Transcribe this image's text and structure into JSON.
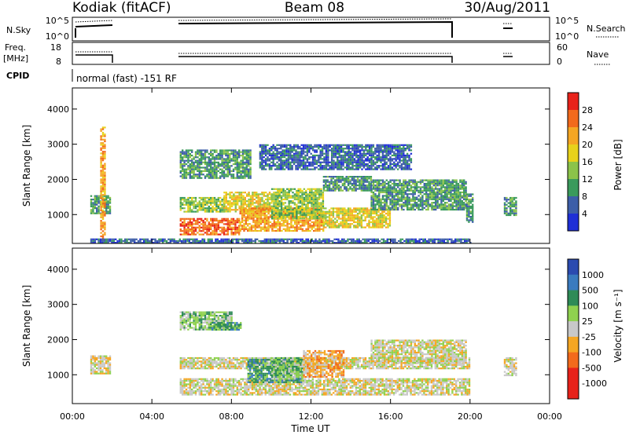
{
  "header": {
    "station": "Kodiak (fitACF)",
    "beam": "Beam 08",
    "date": "30/Aug/2011"
  },
  "summary_panels": {
    "nsky_label": "N.Sky",
    "nsky_ticks": [
      "10^5",
      "10^0"
    ],
    "nsearch_label": "N.Search",
    "nsearch_ticks": [
      "10^5",
      "10^0"
    ],
    "freq_label": "Freq.",
    "freq_unit": "[MHz]",
    "freq_ticks": [
      "18",
      "8"
    ],
    "nave_label": "Nave",
    "nave_ticks": [
      "60",
      "0"
    ],
    "cpid_label": "CPID",
    "cpid_text": "normal (fast) -151 RF"
  },
  "chart_data": [
    {
      "type": "heatmap",
      "name": "Power panel",
      "ylabel": "Slant Range [km]",
      "xlabel": "",
      "y_ticks": [
        1000,
        2000,
        3000,
        4000
      ],
      "ylim": [
        180,
        4600
      ],
      "x_tick_labels": [
        "00:00",
        "04:00",
        "08:00",
        "12:00",
        "16:00",
        "20:00",
        "00:00"
      ],
      "xlim_hours": [
        0,
        24
      ],
      "colorbar": {
        "label": "Power [dB]",
        "ticks": [
          "28",
          "24",
          "20",
          "16",
          "12",
          "8",
          "4"
        ],
        "colors": [
          "#e8221a",
          "#f26a1c",
          "#f5a623",
          "#e8d21b",
          "#8bc34a",
          "#3a9a5c",
          "#3d5ea8",
          "#1f2fd6"
        ]
      },
      "echo_bands": [
        {
          "t0": 0.9,
          "t1": 1.9,
          "r0": 1050,
          "r1": 1550,
          "level": 5
        },
        {
          "t0": 1.4,
          "t1": 1.6,
          "r0": 300,
          "r1": 3500,
          "level": 2
        },
        {
          "t0": 5.4,
          "t1": 7.6,
          "r0": 1100,
          "r1": 1500,
          "level": 4
        },
        {
          "t0": 5.4,
          "t1": 8.4,
          "r0": 450,
          "r1": 900,
          "level": 1
        },
        {
          "t0": 5.4,
          "t1": 9.0,
          "r0": 2050,
          "r1": 2850,
          "level": 5
        },
        {
          "t0": 7.6,
          "t1": 10.0,
          "r0": 1100,
          "r1": 1650,
          "level": 3
        },
        {
          "t0": 8.4,
          "t1": 12.6,
          "r0": 550,
          "r1": 1200,
          "level": 2
        },
        {
          "t0": 10.0,
          "t1": 12.6,
          "r0": 900,
          "r1": 1750,
          "level": 4
        },
        {
          "t0": 12.6,
          "t1": 16.0,
          "r0": 650,
          "r1": 1200,
          "level": 3
        },
        {
          "t0": 12.6,
          "t1": 15.0,
          "r0": 1700,
          "r1": 2100,
          "level": 5
        },
        {
          "t0": 15.0,
          "t1": 19.8,
          "r0": 1150,
          "r1": 2000,
          "level": 5
        },
        {
          "t0": 19.8,
          "t1": 20.1,
          "r0": 800,
          "r1": 1600,
          "level": 5
        },
        {
          "t0": 21.7,
          "t1": 22.3,
          "r0": 1000,
          "r1": 1500,
          "level": 5
        },
        {
          "t0": 9.4,
          "t1": 17.0,
          "r0": 2300,
          "r1": 3000,
          "level": 6
        },
        {
          "t0": 0.9,
          "t1": 20.0,
          "r0": 180,
          "r1": 320,
          "level": 6
        }
      ]
    },
    {
      "type": "heatmap",
      "name": "Velocity panel",
      "ylabel": "Slant Range [km]",
      "xlabel": "Time UT",
      "y_ticks": [
        1000,
        2000,
        3000,
        4000
      ],
      "ylim": [
        180,
        4600
      ],
      "x_tick_labels": [
        "00:00",
        "04:00",
        "08:00",
        "12:00",
        "16:00",
        "20:00",
        "00:00"
      ],
      "xlim_hours": [
        0,
        24
      ],
      "colorbar": {
        "label": "Velocity [m s⁻¹]",
        "ticks": [
          "1000",
          "500",
          "100",
          "25",
          "-25",
          "-100",
          "-500",
          "-1000"
        ],
        "colors": [
          "#2b4bb0",
          "#3a7bbf",
          "#2e8b57",
          "#8fd14f",
          "#c8c8c8",
          "#f5a623",
          "#f26a1c",
          "#e8221a",
          "#e8221a"
        ]
      },
      "echo_bands": [
        {
          "t0": 0.9,
          "t1": 1.9,
          "r0": 1050,
          "r1": 1550,
          "level": 4
        },
        {
          "t0": 5.4,
          "t1": 20.0,
          "r0": 450,
          "r1": 900,
          "level": 4
        },
        {
          "t0": 5.4,
          "t1": 20.0,
          "r0": 1200,
          "r1": 1500,
          "level": 4
        },
        {
          "t0": 5.4,
          "t1": 8.0,
          "r0": 2300,
          "r1": 2800,
          "level": 3
        },
        {
          "t0": 8.8,
          "t1": 11.5,
          "r0": 800,
          "r1": 1450,
          "level": 2
        },
        {
          "t0": 10.0,
          "t1": 11.6,
          "r0": 900,
          "r1": 1500,
          "level": 3
        },
        {
          "t0": 11.6,
          "t1": 13.6,
          "r0": 950,
          "r1": 1700,
          "level": 5
        },
        {
          "t0": 15.0,
          "t1": 19.8,
          "r0": 1350,
          "r1": 2000,
          "level": 4
        },
        {
          "t0": 21.7,
          "t1": 22.3,
          "r0": 1000,
          "r1": 1500,
          "level": 4
        },
        {
          "t0": 7.0,
          "t1": 8.5,
          "r0": 2300,
          "r1": 2500,
          "level": 2
        }
      ]
    }
  ]
}
